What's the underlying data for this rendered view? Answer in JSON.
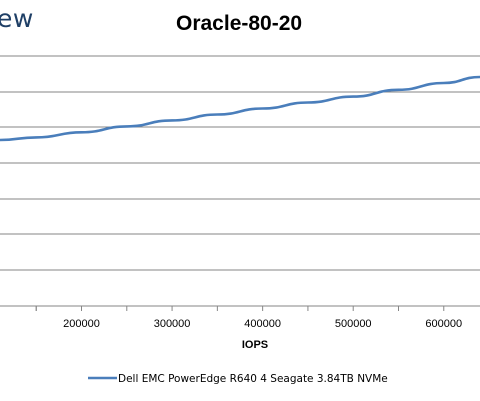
{
  "logo": {
    "text": "ew"
  },
  "chart_data": {
    "type": "line",
    "title": "Oracle-80-20",
    "xlabel": "IOPS",
    "ylabel": "",
    "xlim": [
      110000,
      640000
    ],
    "x_ticks": [
      200000,
      300000,
      400000,
      500000,
      600000
    ],
    "grid": true,
    "legend_position": "bottom",
    "series": [
      {
        "name": "Dell EMC PowerEdge R640 4 Seagate 3.84TB NVMe",
        "color": "#4a7ebb",
        "x": [
          110000,
          150000,
          200000,
          250000,
          300000,
          350000,
          400000,
          450000,
          500000,
          550000,
          600000,
          640000
        ],
        "y": [
          0.54,
          0.57,
          0.63,
          0.7,
          0.77,
          0.84,
          0.91,
          0.98,
          1.05,
          1.13,
          1.21,
          1.28
        ]
      }
    ]
  }
}
